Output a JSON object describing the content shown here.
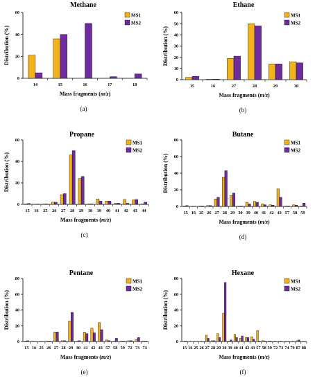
{
  "colors": {
    "ms1": "#f2b21b",
    "ms2": "#6f2c9e",
    "axis": "#000000"
  },
  "chart_data": [
    {
      "type": "bar",
      "panel": "(a)",
      "title": "Methane",
      "xlabel": "Mass fragments (m/z)",
      "ylabel": "Distribution (%)",
      "categories": [
        "14",
        "15",
        "16",
        "17",
        "18"
      ],
      "ylim": [
        0,
        60
      ],
      "yticks": [
        0,
        20,
        40,
        60
      ],
      "legend": "top-right",
      "series": [
        {
          "name": "MS1",
          "values": [
            21,
            36,
            0,
            0,
            0
          ]
        },
        {
          "name": "MS2",
          "values": [
            5,
            40,
            50,
            1.5,
            4
          ]
        }
      ]
    },
    {
      "type": "bar",
      "panel": "(b)",
      "title": "Ethane",
      "xlabel": "Mass fragments (m/z)",
      "ylabel": "Distribution (%)",
      "categories": [
        "15",
        "16",
        "27",
        "28",
        "29",
        "30"
      ],
      "ylim": [
        0,
        60
      ],
      "yticks": [
        0,
        10,
        20,
        30,
        40,
        50,
        60
      ],
      "legend": "top-right",
      "series": [
        {
          "name": "MS1",
          "values": [
            2,
            0.5,
            19,
            50,
            14,
            16
          ]
        },
        {
          "name": "MS2",
          "values": [
            3,
            0.5,
            21,
            48,
            14,
            15
          ]
        }
      ]
    },
    {
      "type": "bar",
      "panel": "(c)",
      "title": "Propane",
      "xlabel": "Mass fragments (m/z)",
      "ylabel": "Distribution (%)",
      "categories": [
        "15",
        "16",
        "25",
        "26",
        "27",
        "28",
        "29",
        "30",
        "39",
        "40",
        "41",
        "42",
        "43",
        "44"
      ],
      "ylim": [
        0,
        60
      ],
      "yticks": [
        0,
        20,
        40,
        60
      ],
      "legend": "top-right",
      "series": [
        {
          "name": "MS1",
          "values": [
            0.5,
            0.2,
            0.3,
            2,
            9,
            46,
            24,
            0.5,
            5,
            3,
            1,
            4.5,
            4,
            0.5
          ]
        },
        {
          "name": "MS2",
          "values": [
            0.8,
            0.3,
            0.4,
            2,
            10,
            50,
            26,
            0.5,
            3,
            3,
            1,
            1,
            4.5,
            2
          ]
        }
      ]
    },
    {
      "type": "bar",
      "panel": "(d)",
      "title": "Butane",
      "xlabel": "Mass fragments (m/z)",
      "ylabel": "Distribution (%)",
      "categories": [
        "15",
        "16",
        "25",
        "26",
        "27",
        "28",
        "29",
        "30",
        "39",
        "40",
        "41",
        "42",
        "43",
        "57",
        "58",
        "59"
      ],
      "ylim": [
        0,
        80
      ],
      "yticks": [
        0,
        20,
        40,
        60,
        80
      ],
      "legend": "top-right",
      "series": [
        {
          "name": "MS1",
          "values": [
            0.5,
            0.3,
            0.5,
            1,
            9,
            35,
            13,
            0.5,
            5,
            6,
            3,
            2,
            21,
            0.5,
            2,
            0.5
          ]
        },
        {
          "name": "MS2",
          "values": [
            1,
            0.3,
            0.5,
            1,
            11,
            43,
            16,
            0.5,
            3,
            5,
            2,
            1.5,
            11,
            0.5,
            1.5,
            4
          ]
        }
      ]
    },
    {
      "type": "bar",
      "panel": "(e)",
      "title": "Pentane",
      "xlabel": "Mass fragments (m/z)",
      "ylabel": "Distribution (%)",
      "categories": [
        "15",
        "16",
        "25",
        "26",
        "27",
        "28",
        "29",
        "30",
        "41",
        "42",
        "43",
        "57",
        "58",
        "59",
        "72",
        "73",
        "74"
      ],
      "ylim": [
        0,
        80
      ],
      "yticks": [
        0,
        20,
        40,
        60,
        80
      ],
      "legend": "top-right",
      "series": [
        {
          "name": "MS1",
          "values": [
            0.5,
            0.3,
            0.3,
            0.5,
            12,
            1,
            26,
            0.5,
            12,
            17,
            24,
            2,
            0.5,
            0.5,
            1,
            2.5,
            0.5
          ]
        },
        {
          "name": "MS2",
          "values": [
            1,
            0.3,
            0.3,
            0.5,
            12,
            1,
            37,
            1,
            10,
            11,
            15,
            1,
            4,
            0.5,
            1,
            5,
            0.5
          ]
        }
      ]
    },
    {
      "type": "bar",
      "panel": "(f)",
      "title": "Hexane",
      "xlabel": "Mass fragments (m/z)",
      "ylabel": "Distribution (%)",
      "categories": [
        "15",
        "16",
        "25",
        "26",
        "27",
        "28",
        "29",
        "30",
        "39",
        "40",
        "41",
        "42",
        "43",
        "57",
        "58",
        "59",
        "72",
        "73",
        "74",
        "79",
        "87",
        "88"
      ],
      "ylim": [
        0,
        80
      ],
      "yticks": [
        0,
        20,
        40,
        60,
        80
      ],
      "legend": "top-right",
      "series": [
        {
          "name": "MS1",
          "values": [
            0.3,
            0.2,
            0.2,
            0.3,
            8,
            1,
            10,
            36,
            0.5,
            9,
            4,
            5,
            6,
            14,
            1,
            0.5,
            0.5,
            0.5,
            0.3,
            0.3,
            1,
            0.3
          ]
        },
        {
          "name": "MS2",
          "values": [
            0.5,
            0.2,
            0.2,
            0.3,
            4,
            1,
            5,
            75,
            2,
            5,
            7,
            5,
            3,
            0.5,
            0.5,
            0.5,
            0.3,
            0.3,
            0.3,
            0.3,
            2,
            0.3
          ]
        }
      ]
    }
  ]
}
